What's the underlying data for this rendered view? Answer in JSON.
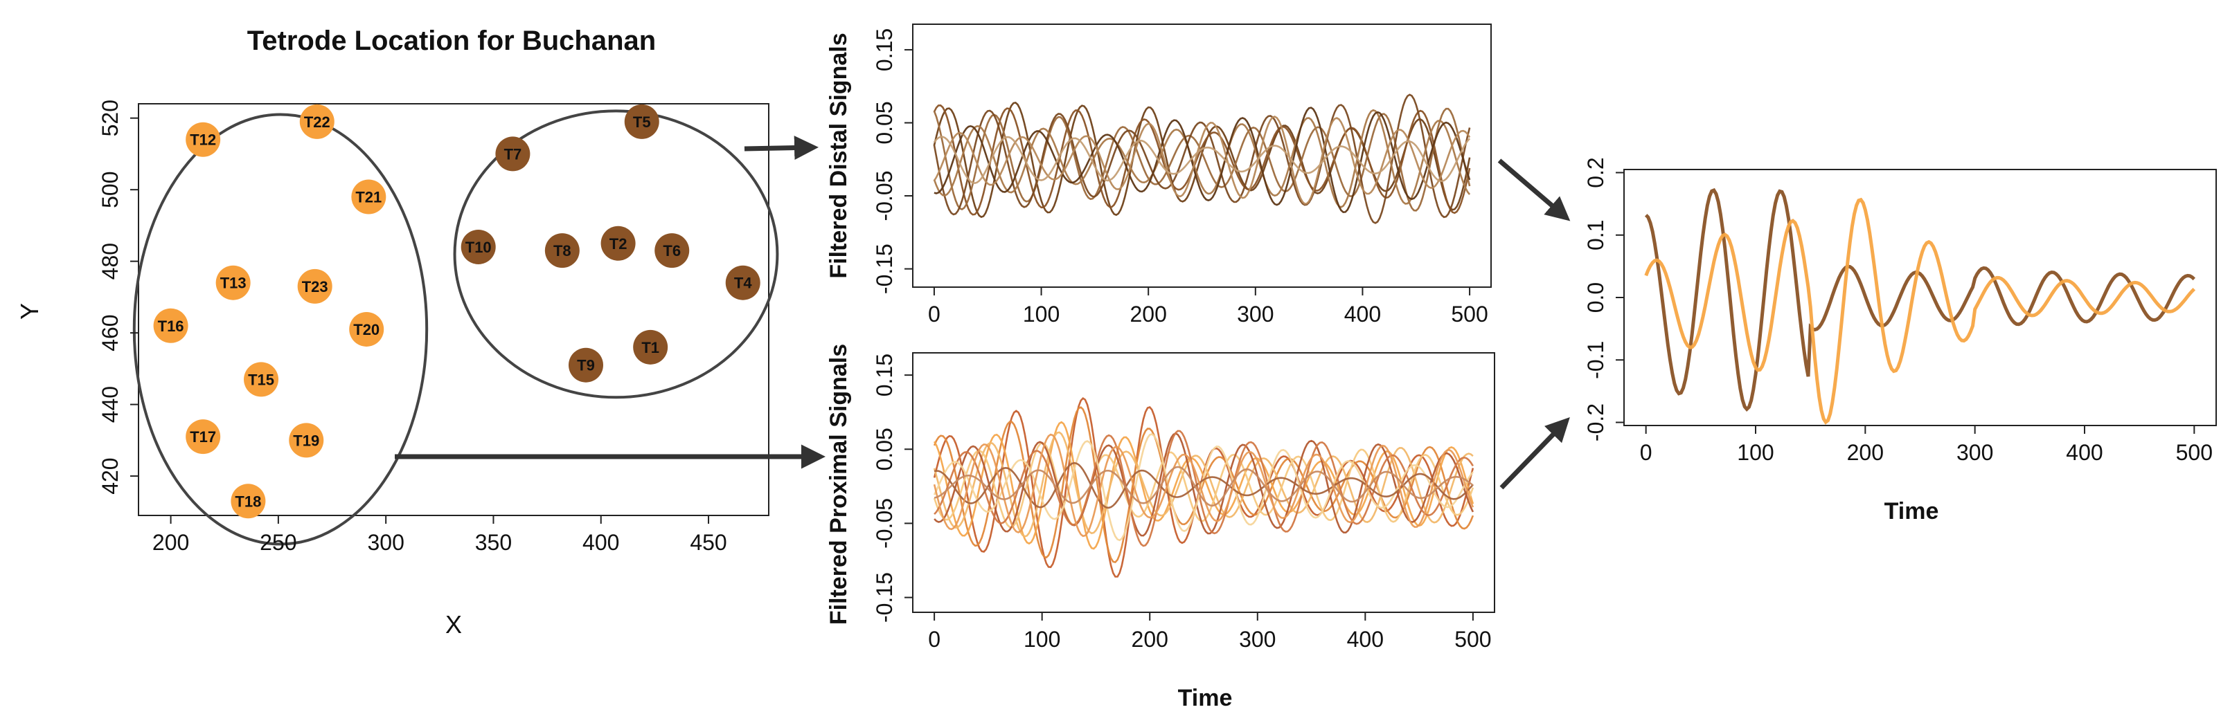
{
  "chart_data": [
    {
      "type": "scatter",
      "title": "Tetrode Location for Buchanan",
      "xlabel": "X",
      "ylabel": "Y",
      "xlim": [
        185,
        478
      ],
      "ylim": [
        409,
        524
      ],
      "xticks": [
        200,
        250,
        300,
        350,
        400,
        450
      ],
      "yticks": [
        420,
        440,
        460,
        480,
        500,
        520
      ],
      "colors": {
        "light": "#f7a03b",
        "dark": "#8a5326"
      },
      "points": [
        {
          "label": "T12",
          "x": 215,
          "y": 514,
          "group": "light"
        },
        {
          "label": "T22",
          "x": 268,
          "y": 519,
          "group": "light"
        },
        {
          "label": "T21",
          "x": 292,
          "y": 498,
          "group": "light"
        },
        {
          "label": "T13",
          "x": 229,
          "y": 474,
          "group": "light"
        },
        {
          "label": "T23",
          "x": 267,
          "y": 473,
          "group": "light"
        },
        {
          "label": "T16",
          "x": 200,
          "y": 462,
          "group": "light"
        },
        {
          "label": "T20",
          "x": 291,
          "y": 461,
          "group": "light"
        },
        {
          "label": "T15",
          "x": 242,
          "y": 447,
          "group": "light"
        },
        {
          "label": "T17",
          "x": 215,
          "y": 431,
          "group": "light"
        },
        {
          "label": "T19",
          "x": 263,
          "y": 430,
          "group": "light"
        },
        {
          "label": "T18",
          "x": 236,
          "y": 413,
          "group": "light"
        },
        {
          "label": "T5",
          "x": 419,
          "y": 519,
          "group": "dark"
        },
        {
          "label": "T7",
          "x": 359,
          "y": 510,
          "group": "dark"
        },
        {
          "label": "T10",
          "x": 343,
          "y": 484,
          "group": "dark"
        },
        {
          "label": "T8",
          "x": 382,
          "y": 483,
          "group": "dark"
        },
        {
          "label": "T2",
          "x": 408,
          "y": 485,
          "group": "dark"
        },
        {
          "label": "T6",
          "x": 433,
          "y": 483,
          "group": "dark"
        },
        {
          "label": "T4",
          "x": 466,
          "y": 474,
          "group": "dark"
        },
        {
          "label": "T1",
          "x": 423,
          "y": 456,
          "group": "dark"
        },
        {
          "label": "T9",
          "x": 393,
          "y": 451,
          "group": "dark"
        }
      ],
      "groupings": [
        {
          "name": "proximal",
          "cx": 251,
          "cy": 461,
          "rx": 68,
          "ry": 60
        },
        {
          "name": "distal",
          "cx": 407,
          "cy": 482,
          "rx": 75,
          "ry": 40
        }
      ]
    },
    {
      "type": "line",
      "ylabel": "Filtered Distal Signals",
      "xlabel": "",
      "xlim": [
        -20,
        520
      ],
      "ylim": [
        -0.175,
        0.185
      ],
      "xticks": [
        0,
        100,
        200,
        300,
        400,
        500
      ],
      "yticks": [
        -0.15,
        -0.05,
        0.05,
        0.15
      ],
      "ytick_labels": [
        "-0.15",
        "-0.05",
        "0.05",
        "0.15"
      ],
      "series": [
        {
          "name": "s1",
          "color": "#6f4119",
          "amp": 0.075,
          "freq": 0.1,
          "phase": 0.3
        },
        {
          "name": "s2",
          "color": "#8a5326",
          "amp": 0.07,
          "freq": 0.098,
          "phase": 1.1
        },
        {
          "name": "s3",
          "color": "#9c6a3c",
          "amp": 0.065,
          "freq": 0.104,
          "phase": 2.0
        },
        {
          "name": "s4",
          "color": "#7a4a22",
          "amp": 0.08,
          "freq": 0.096,
          "phase": 2.9
        },
        {
          "name": "s5",
          "color": "#a97848",
          "amp": 0.06,
          "freq": 0.102,
          "phase": 3.7
        },
        {
          "name": "s6",
          "color": "#5e3716",
          "amp": 0.065,
          "freq": 0.099,
          "phase": 4.5
        },
        {
          "name": "s7",
          "color": "#b68859",
          "amp": 0.055,
          "freq": 0.107,
          "phase": 5.3
        },
        {
          "name": "s8",
          "color": "#c49e74",
          "amp": 0.03,
          "freq": 0.101,
          "phase": 0.9
        }
      ]
    },
    {
      "type": "line",
      "ylabel": "Filtered Proximal Signals",
      "xlabel": "Time",
      "xlim": [
        -20,
        520
      ],
      "ylim": [
        -0.17,
        0.18
      ],
      "xticks": [
        0,
        100,
        200,
        300,
        400,
        500
      ],
      "yticks": [
        -0.15,
        -0.05,
        0.05,
        0.15
      ],
      "ytick_labels": [
        "-0.15",
        "-0.05",
        "0.05",
        "0.15"
      ],
      "series": [
        {
          "name": "p1",
          "color": "#c65f2e",
          "amp": 0.11,
          "freq": 0.101,
          "phase": 0.2
        },
        {
          "name": "p2",
          "color": "#e2883a",
          "amp": 0.1,
          "freq": 0.097,
          "phase": 1.0
        },
        {
          "name": "p3",
          "color": "#f4a64c",
          "amp": 0.09,
          "freq": 0.104,
          "phase": 1.9
        },
        {
          "name": "p4",
          "color": "#f2b86a",
          "amp": 0.085,
          "freq": 0.099,
          "phase": 2.7
        },
        {
          "name": "p5",
          "color": "#f5c87f",
          "amp": 0.08,
          "freq": 0.106,
          "phase": 3.5
        },
        {
          "name": "p6",
          "color": "#b35a32",
          "amp": 0.1,
          "freq": 0.1,
          "phase": 4.3
        },
        {
          "name": "p7",
          "color": "#d27845",
          "amp": 0.095,
          "freq": 0.095,
          "phase": 5.1
        },
        {
          "name": "p8",
          "color": "#f6d59a",
          "amp": 0.075,
          "freq": 0.103,
          "phase": 5.9
        },
        {
          "name": "p9",
          "color": "#a8643c",
          "amp": 0.03,
          "freq": 0.098,
          "phase": 1.4
        },
        {
          "name": "p10",
          "color": "#e99a55",
          "amp": 0.09,
          "freq": 0.102,
          "phase": 3.1
        },
        {
          "name": "p11",
          "color": "#c88a60",
          "amp": 0.035,
          "freq": 0.097,
          "phase": 4.8
        }
      ]
    },
    {
      "type": "line",
      "ylabel": "",
      "xlabel": "Time",
      "xlim": [
        -20,
        520
      ],
      "ylim": [
        -0.205,
        0.205
      ],
      "xticks": [
        0,
        100,
        200,
        300,
        400,
        500
      ],
      "yticks": [
        -0.2,
        -0.1,
        0.0,
        0.1,
        0.2
      ],
      "ytick_labels": [
        "-0.2",
        "-0.1",
        "0.0",
        "0.1",
        "0.2"
      ],
      "series": [
        {
          "name": "distal-mean",
          "color": "#8a5326",
          "amp": 0.17,
          "freq": 0.1015,
          "phase": 1.65,
          "decay": [
            0.95,
            0.25,
            0.55
          ]
        },
        {
          "name": "proximal-mean",
          "color": "#f7a543",
          "amp": 0.19,
          "freq": 0.1005,
          "phase": 0.7,
          "decay": [
            0.35,
            0.95,
            0.35
          ]
        }
      ]
    }
  ]
}
